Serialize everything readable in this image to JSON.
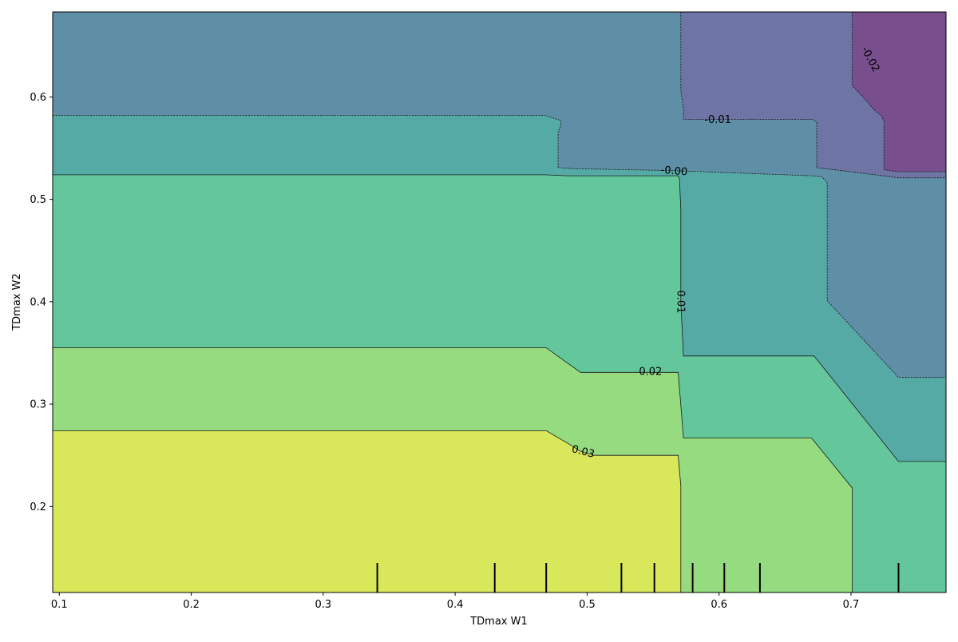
{
  "chart_data": {
    "type": "contour",
    "title": "",
    "xlabel": "TDmax W1",
    "ylabel": "TDmax W2",
    "xlim": [
      0.095,
      0.772
    ],
    "ylim": [
      0.116,
      0.683
    ],
    "xticks": [
      0.1,
      0.2,
      0.3,
      0.4,
      0.5,
      0.6,
      0.7
    ],
    "xtick_labels": [
      "0.1",
      "0.2",
      "0.3",
      "0.4",
      "0.5",
      "0.6",
      "0.7"
    ],
    "yticks": [
      0.2,
      0.3,
      0.4,
      0.5,
      0.6
    ],
    "ytick_labels": [
      "0.2",
      "0.3",
      "0.4",
      "0.5",
      "0.6"
    ],
    "colormap": "viridis",
    "grid": false,
    "levels": [
      {
        "value": -0.02,
        "color": "#784f8c"
      },
      {
        "value": -0.01,
        "color": "#6e74a4"
      },
      {
        "value": -0.0,
        "color": "#5f8fa6"
      },
      {
        "value": 0.01,
        "color": "#56aaa6"
      },
      {
        "value": 0.02,
        "color": "#63c79b"
      },
      {
        "value": 0.03,
        "color": "#96db80"
      },
      {
        "value": 0.04,
        "color": "#d9e75a"
      }
    ],
    "contour_labels": [
      {
        "text": "-0.02",
        "x": 0.715,
        "y": 0.637,
        "rotation": 62
      },
      {
        "text": "-0.01",
        "x": 0.599,
        "y": 0.578,
        "rotation": 0
      },
      {
        "text": "-0.00",
        "x": 0.566,
        "y": 0.528,
        "rotation": 5
      },
      {
        "text": "0.01",
        "x": 0.571,
        "y": 0.4,
        "rotation": 90
      },
      {
        "text": "0.02",
        "x": 0.548,
        "y": 0.332,
        "rotation": 0
      },
      {
        "text": "0.03",
        "x": 0.497,
        "y": 0.254,
        "rotation": 15
      }
    ],
    "rug_x": [
      0.341,
      0.43,
      0.469,
      0.526,
      0.551,
      0.58,
      0.604,
      0.631,
      0.736
    ]
  }
}
